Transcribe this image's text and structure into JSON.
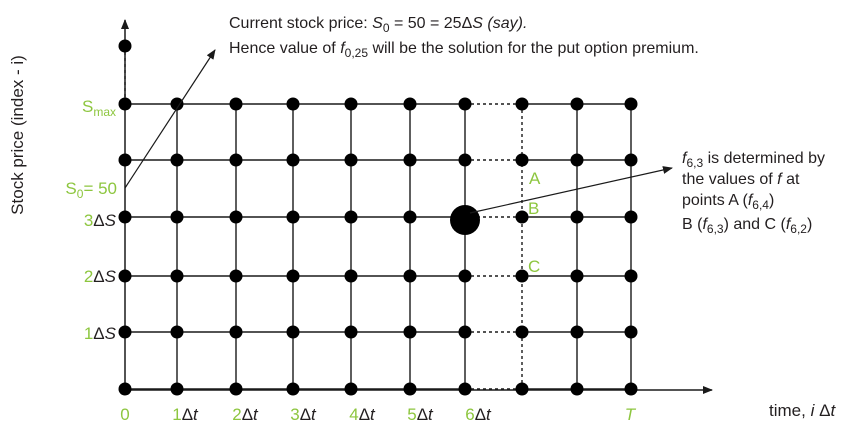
{
  "colors": {
    "ink": "#1a1a1a",
    "accent": "#8dc63f"
  },
  "top_annotation": {
    "line1_prefix": "Current stock price: ",
    "line1_sym": "S",
    "line1_sub": "0",
    "line1_mid": " = 50 = 25",
    "line1_delta": "Δ",
    "line1_sym2": "S",
    "line1_suffix": " (say).",
    "line2_prefix": "Hence value of ",
    "line2_sym": "f",
    "line2_sub": "0,25",
    "line2_suffix": " will be the solution for the put option premium."
  },
  "right_annotation": {
    "l1_sym": "f",
    "l1_sub": "6,3",
    "l1_rest": " is determined by",
    "l2": "the values of ",
    "l2_sym": "f",
    "l2_rest": " at",
    "l3_pre": "points A (",
    "l3_sym": "f",
    "l3_sub": "6,4",
    "l3_post": ")",
    "l4_a": "B (",
    "l4_sym": "f",
    "l4_sub": "6,3",
    "l4_b": ") and C (",
    "l4_sym2": "f",
    "l4_sub2": "6,2",
    "l4_c": ")"
  },
  "y_axis_title": "Stock price (index - i)",
  "x_axis_title_prefix": "time, ",
  "x_axis_title_i": "i",
  "x_axis_title_delta": " Δ",
  "x_axis_title_t": "t",
  "y_labels": {
    "smax_s": "S",
    "smax_sub": "max",
    "s0_s": "S",
    "s0_sub": "0",
    "s0_rest": "= 50",
    "l3_num": "3",
    "l2_num": "2",
    "l1_num": "1",
    "delta": "Δ",
    "s_italic": "S"
  },
  "x_labels": {
    "zero": "0",
    "n1": "1",
    "n2": "2",
    "n3": "3",
    "n4": "4",
    "n5": "5",
    "n6": "6",
    "delta": "Δ",
    "t_italic": "t",
    "T": "T"
  },
  "point_labels": {
    "A": "A",
    "B": "B",
    "C": "C"
  }
}
